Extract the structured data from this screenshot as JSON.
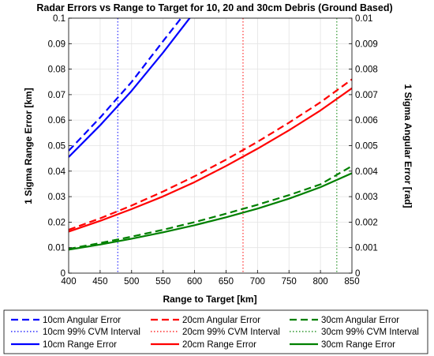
{
  "chart_data": {
    "type": "line",
    "title": "Radar Errors vs Range to Target for 10, 20 and 30cm Debris (Ground Based)",
    "xlabel": "Range to Target [km]",
    "ylabel": "1 Sigma Range Error [km]",
    "y2label": "1 Sigma Angular Error [rad]",
    "xlim": [
      400,
      850
    ],
    "ylim": [
      0,
      0.1
    ],
    "y2lim": [
      0,
      0.01
    ],
    "xticks": [
      "400",
      "450",
      "500",
      "550",
      "600",
      "650",
      "700",
      "750",
      "800",
      "850"
    ],
    "yticks": [
      "0",
      "0.01",
      "0.02",
      "0.03",
      "0.04",
      "0.05",
      "0.06",
      "0.07",
      "0.08",
      "0.09",
      "0.1"
    ],
    "y2ticks": [
      "0",
      "0.001",
      "0.002",
      "0.003",
      "0.004",
      "0.005",
      "0.006",
      "0.007",
      "0.008",
      "0.009",
      "0.01"
    ],
    "grid": true,
    "legend_position": "bottom",
    "series": [
      {
        "name": "10cm Angular Error",
        "color": "#0000ff",
        "style": "dashed",
        "axis": "right",
        "x": [
          400,
          450,
          500,
          550,
          585
        ],
        "y": [
          0.0048,
          0.0061,
          0.0075,
          0.0091,
          0.0102
        ]
      },
      {
        "name": "20cm Angular Error",
        "color": "#ff0000",
        "style": "dashed",
        "axis": "right",
        "x": [
          400,
          450,
          500,
          550,
          600,
          650,
          700,
          750,
          800,
          850
        ],
        "y": [
          0.0017,
          0.00215,
          0.00265,
          0.0032,
          0.0038,
          0.00445,
          0.00515,
          0.0059,
          0.0067,
          0.0076
        ]
      },
      {
        "name": "30cm Angular Error",
        "color": "#008000",
        "style": "dashed",
        "axis": "right",
        "x": [
          400,
          450,
          500,
          550,
          600,
          650,
          700,
          750,
          800,
          850
        ],
        "y": [
          0.00095,
          0.00118,
          0.00143,
          0.0017,
          0.002,
          0.00233,
          0.00268,
          0.00306,
          0.00348,
          0.0042
        ]
      },
      {
        "name": "10cm 99% CVM Interval",
        "color": "#0000ff",
        "style": "dotted",
        "vline": 478
      },
      {
        "name": "20cm 99% CVM Interval",
        "color": "#ff0000",
        "style": "dotted",
        "vline": 677
      },
      {
        "name": "30cm 99% CVM Interval",
        "color": "#008000",
        "style": "dotted",
        "vline": 826
      },
      {
        "name": "10cm Range Error",
        "color": "#0000ff",
        "style": "solid",
        "axis": "left",
        "x": [
          400,
          450,
          500,
          550,
          600,
          615
        ],
        "y": [
          0.0455,
          0.058,
          0.0715,
          0.0865,
          0.1025,
          0.108
        ]
      },
      {
        "name": "20cm Range Error",
        "color": "#ff0000",
        "style": "solid",
        "axis": "left",
        "x": [
          400,
          450,
          500,
          550,
          600,
          650,
          700,
          750,
          800,
          850
        ],
        "y": [
          0.0163,
          0.0205,
          0.0251,
          0.0301,
          0.0357,
          0.042,
          0.0488,
          0.056,
          0.0638,
          0.0725
        ]
      },
      {
        "name": "30cm Range Error",
        "color": "#008000",
        "style": "solid",
        "axis": "left",
        "x": [
          400,
          450,
          500,
          550,
          600,
          650,
          700,
          750,
          800,
          850
        ],
        "y": [
          0.0092,
          0.0112,
          0.0135,
          0.016,
          0.0188,
          0.0219,
          0.0253,
          0.0292,
          0.0337,
          0.0392
        ]
      }
    ]
  }
}
